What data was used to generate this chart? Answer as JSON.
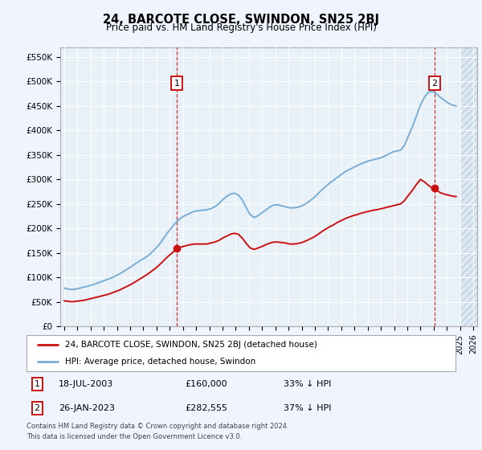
{
  "title": "24, BARCOTE CLOSE, SWINDON, SN25 2BJ",
  "subtitle": "Price paid vs. HM Land Registry's House Price Index (HPI)",
  "background_color": "#f0f4ff",
  "plot_bg_color": "#e8f0f8",
  "hpi_color": "#7aadd4",
  "price_color": "#cc1111",
  "legend_line1": "24, BARCOTE CLOSE, SWINDON, SN25 2BJ (detached house)",
  "legend_line2": "HPI: Average price, detached house, Swindon",
  "ylim": [
    0,
    570000
  ],
  "yticks": [
    0,
    50000,
    100000,
    150000,
    200000,
    250000,
    300000,
    350000,
    400000,
    450000,
    500000,
    550000
  ],
  "ytick_labels": [
    "£0",
    "£50K",
    "£100K",
    "£150K",
    "£200K",
    "£250K",
    "£300K",
    "£350K",
    "£400K",
    "£450K",
    "£500K",
    "£550K"
  ],
  "hpi_data": {
    "x": [
      1995.0,
      1995.3,
      1995.6,
      1995.9,
      1996.2,
      1996.5,
      1996.8,
      1997.1,
      1997.4,
      1997.7,
      1998.0,
      1998.3,
      1998.6,
      1998.9,
      1999.2,
      1999.5,
      1999.8,
      2000.1,
      2000.4,
      2000.7,
      2001.0,
      2001.3,
      2001.6,
      2001.9,
      2002.2,
      2002.5,
      2002.8,
      2003.1,
      2003.4,
      2003.7,
      2004.0,
      2004.3,
      2004.6,
      2004.9,
      2005.2,
      2005.5,
      2005.8,
      2006.1,
      2006.4,
      2006.7,
      2007.0,
      2007.3,
      2007.6,
      2007.9,
      2008.2,
      2008.5,
      2008.8,
      2009.1,
      2009.4,
      2009.7,
      2010.0,
      2010.3,
      2010.6,
      2010.9,
      2011.2,
      2011.5,
      2011.8,
      2012.1,
      2012.4,
      2012.7,
      2013.0,
      2013.3,
      2013.6,
      2013.9,
      2014.2,
      2014.5,
      2014.8,
      2015.1,
      2015.4,
      2015.7,
      2016.0,
      2016.3,
      2016.6,
      2016.9,
      2017.2,
      2017.5,
      2017.8,
      2018.1,
      2018.4,
      2018.7,
      2019.0,
      2019.3,
      2019.6,
      2019.9,
      2020.2,
      2020.5,
      2020.8,
      2021.1,
      2021.4,
      2021.7,
      2022.0,
      2022.3,
      2022.6,
      2022.9,
      2023.2,
      2023.5,
      2023.8,
      2024.1,
      2024.4,
      2024.7
    ],
    "y": [
      78000,
      76000,
      75000,
      76000,
      78000,
      80000,
      82000,
      84000,
      87000,
      90000,
      93000,
      96000,
      99000,
      103000,
      107000,
      112000,
      117000,
      122000,
      128000,
      133000,
      138000,
      143000,
      150000,
      158000,
      167000,
      178000,
      190000,
      200000,
      210000,
      218000,
      224000,
      228000,
      232000,
      235000,
      236000,
      237000,
      238000,
      240000,
      244000,
      250000,
      258000,
      265000,
      270000,
      272000,
      268000,
      258000,
      242000,
      228000,
      222000,
      226000,
      232000,
      238000,
      244000,
      248000,
      248000,
      246000,
      244000,
      242000,
      242000,
      243000,
      246000,
      250000,
      256000,
      262000,
      270000,
      278000,
      285000,
      292000,
      298000,
      304000,
      310000,
      316000,
      320000,
      324000,
      328000,
      332000,
      335000,
      338000,
      340000,
      342000,
      344000,
      348000,
      352000,
      356000,
      358000,
      360000,
      370000,
      390000,
      408000,
      430000,
      452000,
      468000,
      478000,
      480000,
      475000,
      468000,
      462000,
      456000,
      452000,
      450000
    ]
  },
  "price_data": {
    "x": [
      1995.0,
      1995.3,
      1995.6,
      1995.9,
      1996.2,
      1996.5,
      1996.8,
      1997.1,
      1997.4,
      1997.7,
      1998.0,
      1998.3,
      1998.6,
      1998.9,
      1999.2,
      1999.5,
      1999.8,
      2000.1,
      2000.4,
      2000.7,
      2001.0,
      2001.3,
      2001.6,
      2001.9,
      2002.2,
      2002.5,
      2002.8,
      2003.1,
      2003.4,
      2003.7,
      2004.0,
      2004.3,
      2004.6,
      2004.9,
      2005.2,
      2005.5,
      2005.8,
      2006.1,
      2006.4,
      2006.7,
      2007.0,
      2007.3,
      2007.6,
      2007.9,
      2008.2,
      2008.5,
      2008.8,
      2009.1,
      2009.4,
      2009.7,
      2010.0,
      2010.3,
      2010.6,
      2010.9,
      2011.2,
      2011.5,
      2011.8,
      2012.1,
      2012.4,
      2012.7,
      2013.0,
      2013.3,
      2013.6,
      2013.9,
      2014.2,
      2014.5,
      2014.8,
      2015.1,
      2015.4,
      2015.7,
      2016.0,
      2016.3,
      2016.6,
      2016.9,
      2017.2,
      2017.5,
      2017.8,
      2018.1,
      2018.4,
      2018.7,
      2019.0,
      2019.3,
      2019.6,
      2019.9,
      2020.2,
      2020.5,
      2020.8,
      2021.1,
      2021.4,
      2021.7,
      2022.0,
      2022.3,
      2022.6,
      2022.9,
      2023.2,
      2023.5,
      2023.8,
      2024.1,
      2024.4,
      2024.7
    ],
    "y": [
      52000,
      51000,
      50000,
      51000,
      52000,
      53000,
      55000,
      57000,
      59000,
      61000,
      63000,
      65000,
      68000,
      71000,
      74000,
      78000,
      82000,
      86000,
      91000,
      96000,
      101000,
      106000,
      112000,
      118000,
      125000,
      133000,
      141000,
      148000,
      155000,
      160000,
      163000,
      165000,
      167000,
      168000,
      168000,
      168000,
      168000,
      170000,
      172000,
      175000,
      180000,
      184000,
      188000,
      190000,
      188000,
      180000,
      169000,
      160000,
      157000,
      160000,
      163000,
      167000,
      170000,
      172000,
      172000,
      171000,
      170000,
      168000,
      168000,
      169000,
      171000,
      174000,
      178000,
      182000,
      187000,
      193000,
      198000,
      203000,
      207000,
      212000,
      216000,
      220000,
      223000,
      226000,
      228000,
      231000,
      233000,
      235000,
      237000,
      238000,
      240000,
      242000,
      244000,
      246000,
      248000,
      250000,
      257000,
      268000,
      278000,
      290000,
      300000,
      295000,
      288000,
      282000,
      278000,
      273000,
      270000,
      268000,
      266000,
      265000
    ]
  },
  "marker1_x": 2003.55,
  "marker2_x": 2023.08,
  "marker1_y": 160000,
  "marker2_y": 282555,
  "hatch_start": 2025.0,
  "xlim": [
    1994.7,
    2026.3
  ],
  "xtick_years": [
    1995,
    1996,
    1997,
    1998,
    1999,
    2000,
    2001,
    2002,
    2003,
    2004,
    2005,
    2006,
    2007,
    2008,
    2009,
    2010,
    2011,
    2012,
    2013,
    2014,
    2015,
    2016,
    2017,
    2018,
    2019,
    2020,
    2021,
    2022,
    2023,
    2024,
    2025,
    2026
  ]
}
